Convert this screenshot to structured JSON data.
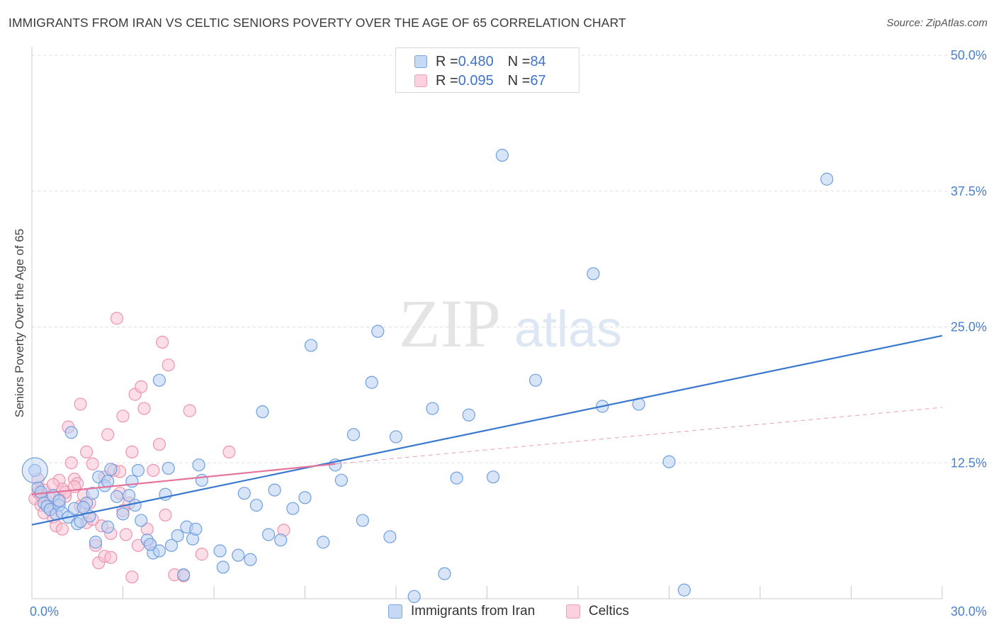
{
  "title": "IMMIGRANTS FROM IRAN VS CELTIC SENIORS POVERTY OVER THE AGE OF 65 CORRELATION CHART",
  "source": "Source: ZipAtlas.com",
  "watermark": {
    "zip": "ZIP",
    "atlas": "atlas"
  },
  "legend": {
    "series1": {
      "r_label": "R = ",
      "r_value": "0.480",
      "n_label": "N = ",
      "n_value": "84"
    },
    "series2": {
      "r_label": "R = ",
      "r_value": "0.095",
      "n_label": "N = ",
      "n_value": "67"
    }
  },
  "colors": {
    "iran_fill": "#b8d0f3",
    "iran_stroke": "#6f9fe0",
    "iran_line": "#3a78d0",
    "celtic_fill": "#f8c3d3",
    "celtic_stroke": "#ee93b0",
    "celtic_line": "#e5729a",
    "grid": "#dddddd",
    "tick_text": "#4a7fcf"
  },
  "chart_data": {
    "type": "scatter",
    "title": "IMMIGRANTS FROM IRAN VS CELTIC SENIORS POVERTY OVER THE AGE OF 65 CORRELATION CHART",
    "xlabel": "",
    "ylabel": "Seniors Poverty Over the Age of 65",
    "xlim": [
      0,
      30
    ],
    "ylim": [
      0,
      50
    ],
    "x_tick_labels": [
      {
        "x": 0,
        "label": "0.0%"
      },
      {
        "x": 30,
        "label": "30.0%"
      }
    ],
    "y_tick_labels": [
      {
        "y": 12.5,
        "label": "12.5%"
      },
      {
        "y": 25,
        "label": "25.0%"
      },
      {
        "y": 37.5,
        "label": "37.5%"
      },
      {
        "y": 50,
        "label": "50.0%"
      }
    ],
    "grid": true,
    "legend_position": "top-center",
    "series": [
      {
        "name": "Immigrants from Iran",
        "r": 0.48,
        "n": 84,
        "trend": {
          "x": [
            0,
            30
          ],
          "y": [
            6.8,
            24.2
          ],
          "style": "solid"
        },
        "points": [
          [
            0.1,
            11.8
          ],
          [
            0.2,
            10.2
          ],
          [
            0.3,
            9.8
          ],
          [
            0.4,
            8.8
          ],
          [
            0.5,
            8.5
          ],
          [
            0.6,
            8.2
          ],
          [
            0.7,
            9.5
          ],
          [
            0.8,
            7.8
          ],
          [
            0.9,
            8.6
          ],
          [
            1.0,
            7.9
          ],
          [
            1.2,
            7.5
          ],
          [
            1.4,
            8.3
          ],
          [
            1.5,
            6.9
          ],
          [
            1.6,
            7.1
          ],
          [
            1.8,
            8.8
          ],
          [
            1.9,
            7.6
          ],
          [
            2.0,
            9.7
          ],
          [
            2.2,
            11.2
          ],
          [
            2.4,
            10.4
          ],
          [
            2.5,
            10.8
          ],
          [
            2.6,
            11.9
          ],
          [
            2.8,
            9.4
          ],
          [
            3.0,
            7.8
          ],
          [
            3.2,
            9.5
          ],
          [
            3.4,
            8.6
          ],
          [
            3.6,
            7.2
          ],
          [
            3.8,
            5.4
          ],
          [
            4.0,
            4.2
          ],
          [
            4.2,
            4.4
          ],
          [
            4.4,
            9.6
          ],
          [
            4.6,
            4.9
          ],
          [
            4.8,
            5.8
          ],
          [
            5.0,
            2.2
          ],
          [
            5.1,
            6.6
          ],
          [
            5.3,
            5.5
          ],
          [
            5.5,
            12.3
          ],
          [
            5.6,
            10.9
          ],
          [
            6.2,
            4.4
          ],
          [
            6.8,
            4.0
          ],
          [
            7.0,
            9.7
          ],
          [
            7.2,
            3.6
          ],
          [
            7.4,
            8.6
          ],
          [
            7.6,
            17.2
          ],
          [
            7.8,
            5.9
          ],
          [
            8.0,
            10.0
          ],
          [
            8.2,
            5.4
          ],
          [
            8.6,
            8.3
          ],
          [
            9.0,
            9.3
          ],
          [
            9.2,
            23.3
          ],
          [
            9.6,
            5.2
          ],
          [
            10.0,
            12.3
          ],
          [
            10.2,
            10.9
          ],
          [
            10.6,
            15.1
          ],
          [
            10.9,
            7.2
          ],
          [
            11.2,
            19.9
          ],
          [
            11.4,
            24.6
          ],
          [
            11.8,
            5.7
          ],
          [
            12.0,
            14.9
          ],
          [
            13.2,
            17.5
          ],
          [
            13.6,
            2.3
          ],
          [
            14.0,
            11.1
          ],
          [
            14.4,
            16.9
          ],
          [
            15.2,
            11.2
          ],
          [
            15.5,
            40.8
          ],
          [
            16.6,
            20.1
          ],
          [
            18.5,
            29.9
          ],
          [
            18.8,
            17.7
          ],
          [
            20.0,
            17.9
          ],
          [
            21.0,
            12.6
          ],
          [
            21.5,
            0.8
          ],
          [
            26.2,
            38.6
          ],
          [
            4.2,
            20.1
          ],
          [
            3.3,
            10.8
          ],
          [
            2.5,
            6.6
          ],
          [
            1.3,
            15.3
          ],
          [
            3.5,
            11.8
          ],
          [
            1.7,
            8.4
          ],
          [
            0.9,
            9.0
          ],
          [
            2.1,
            5.2
          ],
          [
            5.4,
            6.4
          ],
          [
            12.6,
            0.2
          ],
          [
            6.3,
            2.9
          ],
          [
            4.5,
            12.0
          ],
          [
            3.9,
            5.0
          ]
        ]
      },
      {
        "name": "Celtics",
        "r": 0.095,
        "n": 67,
        "trend_solid": {
          "x": [
            0,
            10.0
          ],
          "y": [
            9.6,
            12.4
          ],
          "style": "solid"
        },
        "trend_dashed": {
          "x": [
            10.0,
            30
          ],
          "y": [
            12.4,
            17.6
          ],
          "style": "dashed"
        },
        "points": [
          [
            0.1,
            9.2
          ],
          [
            0.2,
            9.8
          ],
          [
            0.3,
            8.6
          ],
          [
            0.4,
            10.0
          ],
          [
            0.5,
            8.9
          ],
          [
            0.6,
            9.3
          ],
          [
            0.7,
            7.5
          ],
          [
            0.8,
            6.7
          ],
          [
            0.9,
            10.9
          ],
          [
            1.0,
            10.1
          ],
          [
            1.1,
            9.4
          ],
          [
            1.2,
            15.8
          ],
          [
            1.3,
            12.5
          ],
          [
            1.4,
            11.0
          ],
          [
            1.5,
            10.6
          ],
          [
            1.6,
            17.9
          ],
          [
            1.7,
            9.5
          ],
          [
            1.8,
            13.5
          ],
          [
            1.9,
            8.8
          ],
          [
            2.0,
            12.4
          ],
          [
            2.1,
            4.9
          ],
          [
            2.2,
            3.3
          ],
          [
            2.3,
            6.7
          ],
          [
            2.4,
            3.9
          ],
          [
            2.5,
            15.1
          ],
          [
            2.6,
            6.0
          ],
          [
            2.7,
            11.8
          ],
          [
            2.8,
            25.8
          ],
          [
            2.9,
            11.7
          ],
          [
            3.0,
            16.8
          ],
          [
            3.1,
            5.9
          ],
          [
            3.2,
            8.8
          ],
          [
            3.3,
            13.5
          ],
          [
            3.4,
            18.8
          ],
          [
            3.5,
            4.9
          ],
          [
            3.6,
            19.5
          ],
          [
            3.7,
            17.5
          ],
          [
            3.9,
            5.0
          ],
          [
            4.0,
            11.8
          ],
          [
            4.2,
            14.2
          ],
          [
            4.3,
            23.6
          ],
          [
            4.4,
            7.7
          ],
          [
            4.5,
            21.5
          ],
          [
            4.7,
            2.2
          ],
          [
            5.0,
            2.1
          ],
          [
            5.2,
            17.3
          ],
          [
            5.6,
            4.1
          ],
          [
            6.5,
            13.5
          ],
          [
            8.3,
            6.3
          ],
          [
            0.2,
            11.0
          ],
          [
            0.6,
            8.2
          ],
          [
            1.1,
            9.8
          ],
          [
            1.8,
            7.0
          ],
          [
            2.6,
            3.8
          ],
          [
            3.3,
            2.0
          ],
          [
            0.4,
            7.9
          ],
          [
            0.9,
            9.1
          ],
          [
            1.4,
            10.3
          ],
          [
            2.0,
            7.3
          ],
          [
            2.9,
            9.7
          ],
          [
            3.8,
            6.4
          ],
          [
            1.0,
            6.4
          ],
          [
            0.3,
            9.5
          ],
          [
            1.6,
            8.5
          ],
          [
            2.4,
            11.2
          ],
          [
            3.0,
            8.1
          ],
          [
            0.7,
            10.5
          ]
        ]
      }
    ]
  },
  "bottom_legend": {
    "item1": "Immigrants from Iran",
    "item2": "Celtics"
  }
}
